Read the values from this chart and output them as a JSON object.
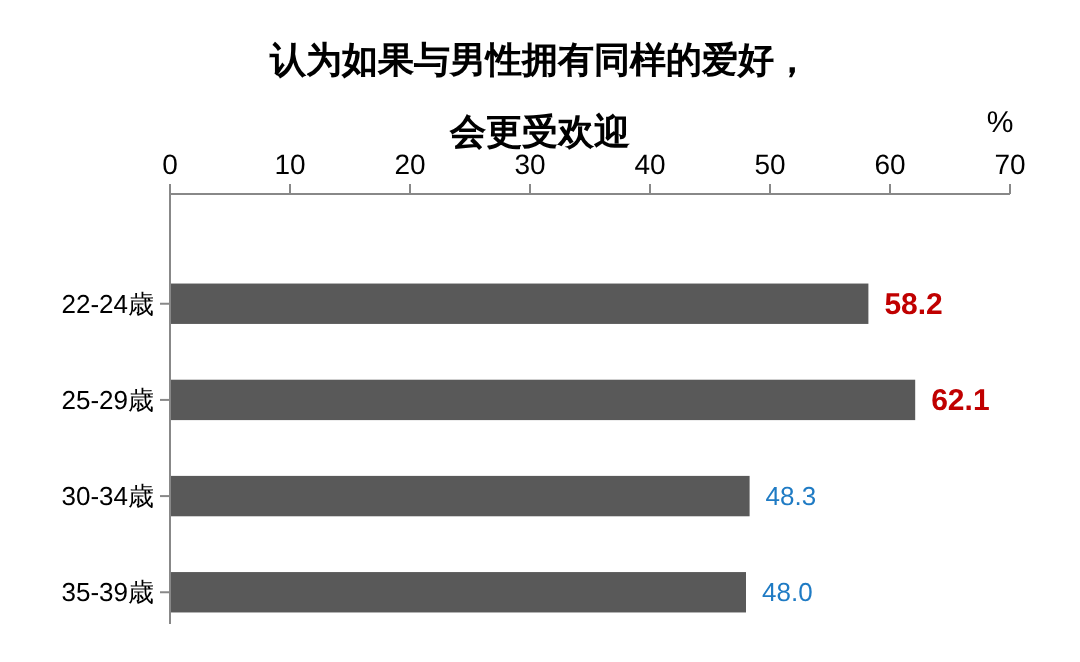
{
  "chart_data": {
    "type": "bar",
    "orientation": "horizontal",
    "title": "认为如果与男性拥有同样的爱好，",
    "subtitle": "会更受欢迎",
    "xlabel": "%",
    "categories": [
      "22-24歳",
      "25-29歳",
      "30-34歳",
      "35-39歳"
    ],
    "values": [
      58.2,
      62.1,
      48.3,
      48.0
    ],
    "color": "#595959",
    "value_labels": [
      "58.2",
      "62.1",
      "48.3",
      "48.0"
    ],
    "xlim": [
      0,
      70
    ],
    "xticks": [
      0,
      10,
      20,
      30,
      40,
      50,
      60,
      70
    ],
    "grid": false
  }
}
